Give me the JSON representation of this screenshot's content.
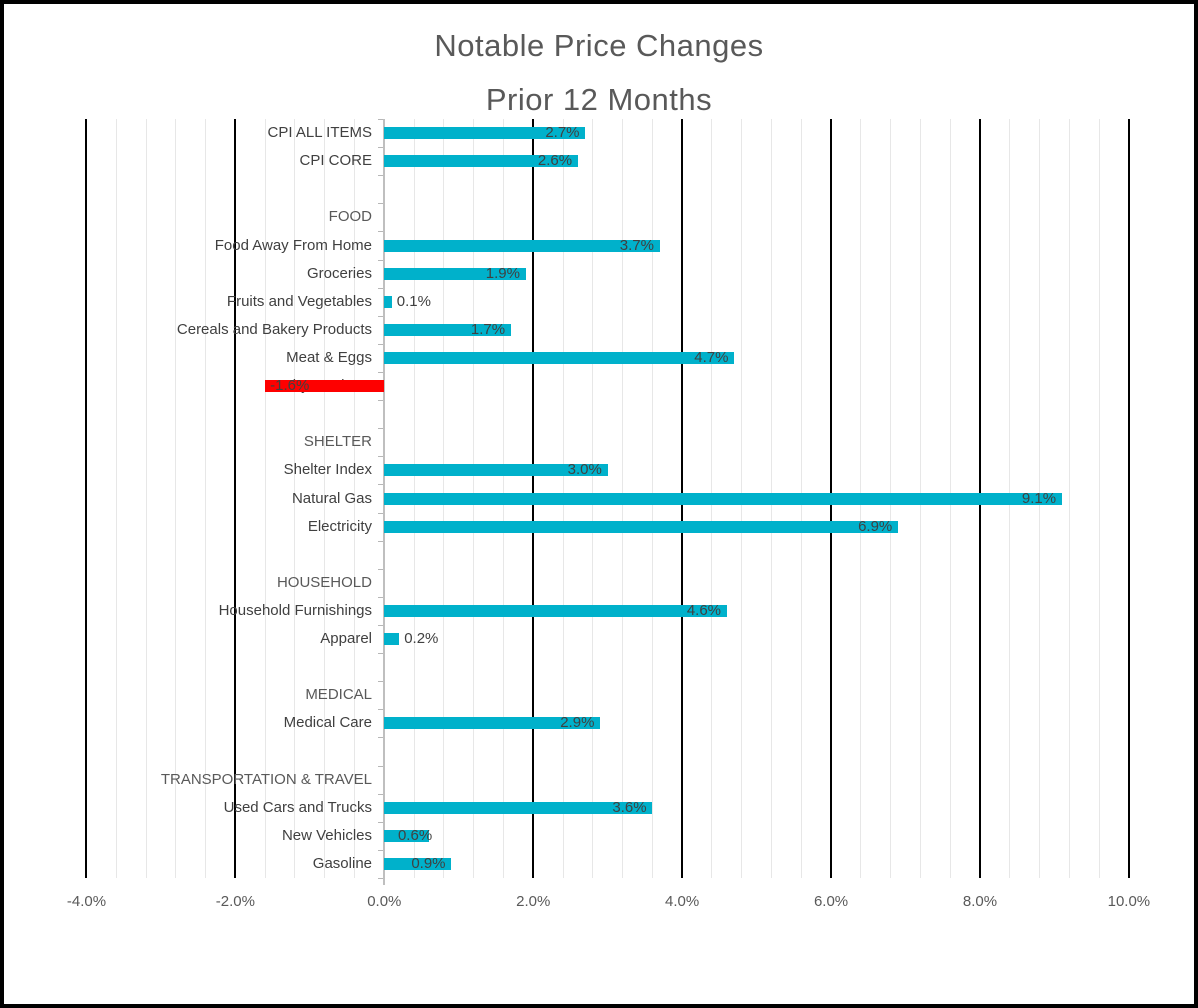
{
  "title": {
    "line1": "Notable Price Changes",
    "line2": "Prior 12 Months"
  },
  "chart_data": {
    "type": "bar",
    "orientation": "horizontal",
    "title": "Notable Price Changes Prior 12 Months",
    "value_format": "percent_one_decimal",
    "rows": [
      {
        "label": "CPI ALL ITEMS",
        "value": 2.7,
        "kind": "item"
      },
      {
        "label": "CPI CORE",
        "value": 2.6,
        "kind": "item"
      },
      {
        "label": "",
        "value": null,
        "kind": "blank"
      },
      {
        "label": "FOOD",
        "value": null,
        "kind": "header"
      },
      {
        "label": "Food Away From Home",
        "value": 3.7,
        "kind": "item"
      },
      {
        "label": "Groceries",
        "value": 1.9,
        "kind": "item"
      },
      {
        "label": "Fruits and Vegetables",
        "value": 0.1,
        "kind": "item"
      },
      {
        "label": "Cereals and Bakery Products",
        "value": 1.7,
        "kind": "item"
      },
      {
        "label": "Meat & Eggs",
        "value": 4.7,
        "kind": "item"
      },
      {
        "label": "Dairy Products",
        "value": -1.6,
        "kind": "item"
      },
      {
        "label": "",
        "value": null,
        "kind": "blank"
      },
      {
        "label": "SHELTER",
        "value": null,
        "kind": "header"
      },
      {
        "label": "Shelter Index",
        "value": 3.0,
        "kind": "item"
      },
      {
        "label": "Natural Gas",
        "value": 9.1,
        "kind": "item"
      },
      {
        "label": "Electricity",
        "value": 6.9,
        "kind": "item"
      },
      {
        "label": "",
        "value": null,
        "kind": "blank"
      },
      {
        "label": "HOUSEHOLD",
        "value": null,
        "kind": "header"
      },
      {
        "label": "Household Furnishings",
        "value": 4.6,
        "kind": "item"
      },
      {
        "label": "Apparel",
        "value": 0.2,
        "kind": "item"
      },
      {
        "label": "",
        "value": null,
        "kind": "blank"
      },
      {
        "label": "MEDICAL",
        "value": null,
        "kind": "header"
      },
      {
        "label": "Medical Care",
        "value": 2.9,
        "kind": "item"
      },
      {
        "label": "",
        "value": null,
        "kind": "blank"
      },
      {
        "label": "TRANSPORTATION & TRAVEL",
        "value": null,
        "kind": "header"
      },
      {
        "label": "Used Cars and Trucks",
        "value": 3.6,
        "kind": "item"
      },
      {
        "label": "New Vehicles",
        "value": 0.6,
        "kind": "item"
      },
      {
        "label": "Gasoline",
        "value": 0.9,
        "kind": "item"
      }
    ],
    "x_axis": {
      "tick_labels": [
        "-4.0%",
        "-2.0%",
        "0.0%",
        "2.0%",
        "4.0%",
        "6.0%",
        "8.0%",
        "10.0%"
      ],
      "tick_values": [
        -4,
        -2,
        0,
        2,
        4,
        6,
        8,
        10
      ],
      "min": -4.0,
      "max": 10.0,
      "major_unit": 2.0,
      "minor_unit": 0.4
    },
    "legend": "none",
    "grid": {
      "major_color": "#000000",
      "minor_color": "#e7e7e7",
      "category_axis_color": "#bfbfbf"
    },
    "colors": {
      "positive_bar": "#00b1cb",
      "negative_bar": "#fe0000",
      "label_text": "#404040",
      "axis_text": "#595959",
      "title_text": "#595959"
    }
  }
}
